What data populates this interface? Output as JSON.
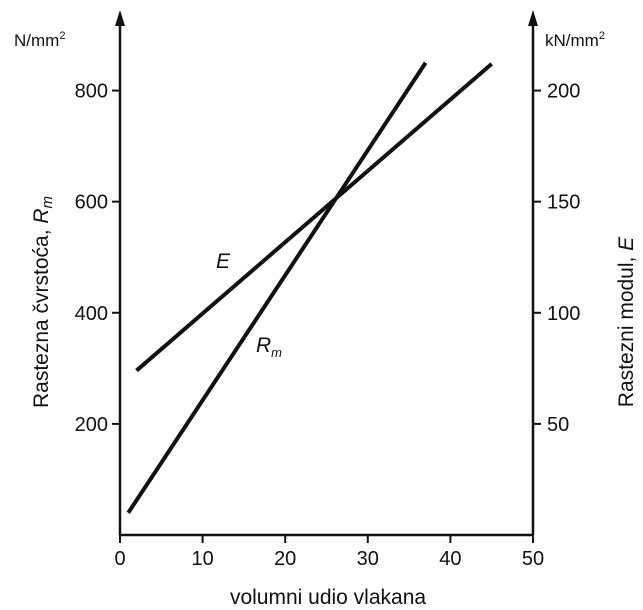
{
  "chart_data": {
    "type": "line",
    "xlabel": "volumni udio vlakana",
    "xlim": [
      0,
      50
    ],
    "x_ticks": [
      0,
      10,
      20,
      30,
      40,
      50
    ],
    "left_axis": {
      "label_main": "Rastezna čvrstoća, ",
      "label_symbol": "R",
      "label_sub": "m",
      "unit_base": "N/mm",
      "unit_exp": "2",
      "ylim": [
        0,
        900
      ],
      "ticks": [
        200,
        400,
        600,
        800
      ]
    },
    "right_axis": {
      "label_main": "Rastezni modul, ",
      "label_symbol": "E",
      "unit_base": "kN/mm",
      "unit_exp": "2",
      "ylim": [
        0,
        225
      ],
      "ticks": [
        50,
        100,
        150,
        200
      ]
    },
    "series": [
      {
        "name": "E",
        "label_main": "E",
        "axis": "right",
        "x": [
          2,
          45
        ],
        "y": [
          74,
          212
        ]
      },
      {
        "name": "Rm",
        "label_main": "R",
        "label_sub": "m",
        "axis": "left",
        "x": [
          1,
          37
        ],
        "y": [
          40,
          850
        ]
      }
    ]
  }
}
